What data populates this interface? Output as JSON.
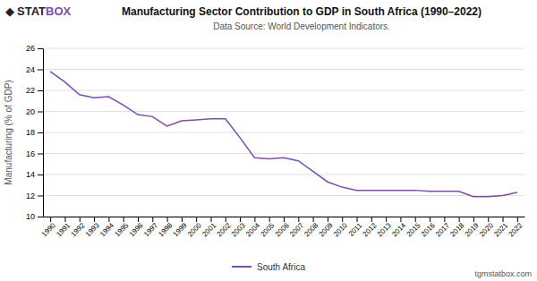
{
  "chart_data": {
    "type": "line",
    "title": "Manufacturing Sector Contribution to GDP in South Africa (1990–2022)",
    "subtitle": "Data Source: World Development Indicators.",
    "ylabel": "Manufacturing (% of GDP)",
    "annotations": [
      "◆",
      "STAT",
      "BOX",
      "tgmstatbox.com"
    ],
    "x": [
      1990,
      1991,
      1992,
      1993,
      1994,
      1995,
      1996,
      1997,
      1998,
      1999,
      2000,
      2001,
      2002,
      2003,
      2004,
      2005,
      2006,
      2007,
      2008,
      2009,
      2010,
      2011,
      2012,
      2013,
      2014,
      2015,
      2016,
      2017,
      2018,
      2019,
      2020,
      2021,
      2022
    ],
    "series": [
      {
        "name": "South Africa",
        "color": "#7B4FAB",
        "values": [
          23.8,
          22.8,
          21.6,
          21.3,
          21.4,
          20.6,
          19.7,
          19.5,
          18.6,
          19.1,
          19.2,
          19.3,
          19.3,
          17.5,
          15.6,
          15.5,
          15.6,
          15.3,
          14.3,
          13.3,
          12.8,
          12.5,
          12.5,
          12.5,
          12.5,
          12.5,
          12.4,
          12.4,
          12.4,
          11.9,
          11.9,
          12.0,
          12.3
        ]
      }
    ],
    "xlim": [
      1989.5,
      2022.5
    ],
    "xticks": [
      1990,
      1991,
      1992,
      1993,
      1994,
      1995,
      1996,
      1997,
      1998,
      1999,
      2000,
      2001,
      2002,
      2003,
      2004,
      2005,
      2006,
      2007,
      2008,
      2009,
      2010,
      2011,
      2012,
      2013,
      2014,
      2015,
      2016,
      2017,
      2018,
      2019,
      2020,
      2021,
      2022
    ],
    "ylim": [
      10,
      26
    ],
    "yticks": [
      10,
      12,
      14,
      16,
      18,
      20,
      22,
      24,
      26
    ],
    "grid": true,
    "legend": "bottom"
  }
}
